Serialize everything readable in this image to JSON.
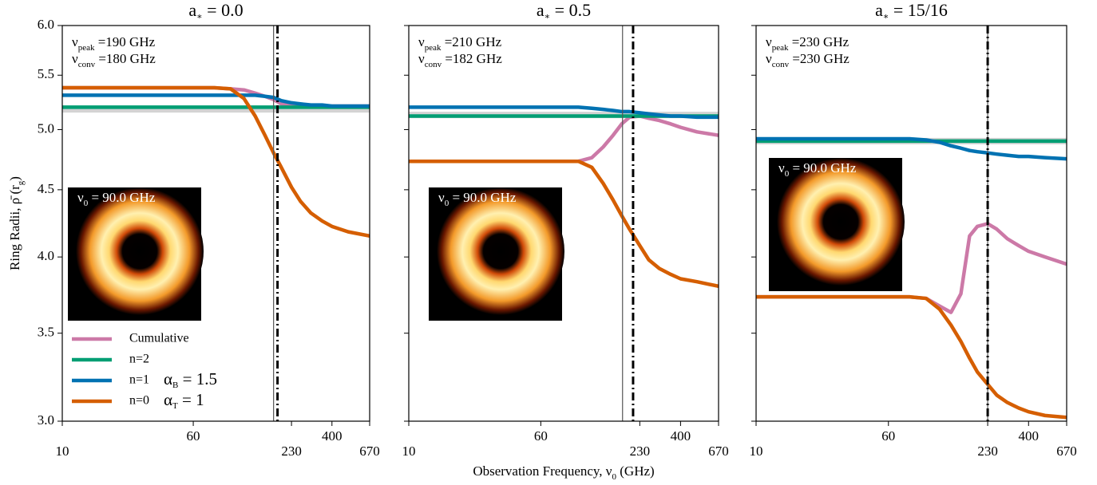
{
  "chart_data": [
    {
      "type": "line",
      "title": [
        "a",
        "∗",
        " = 0.0"
      ],
      "ylabel": [
        "Ring Radii, ρ̄ (r",
        "g",
        ")"
      ],
      "annotations": [
        [
          "ν",
          "peak",
          " =190 GHz"
        ],
        [
          "ν",
          "conv",
          " =180 GHz"
        ]
      ],
      "nu_peak": 190,
      "nu_conv": 180,
      "inset_label": [
        "ν",
        "0",
        " = 90.0 GHz"
      ],
      "notes": [
        [
          "α",
          "B",
          " = 1.5"
        ],
        [
          "α",
          "T",
          " = 1"
        ]
      ],
      "legend": "lower left",
      "xscale": "log",
      "yscale": "log",
      "xlim": [
        10,
        670
      ],
      "xticks": [
        10,
        60,
        230,
        400,
        670
      ],
      "ylim": [
        3,
        6
      ],
      "yticks": [
        {
          "value": 3,
          "label": "3.0"
        },
        {
          "value": 3.5,
          "label": "3.5"
        },
        {
          "value": 4,
          "label": "4.0"
        },
        {
          "value": 4.5,
          "label": "4.5"
        },
        {
          "value": 5,
          "label": "5.0"
        },
        {
          "value": 5.5,
          "label": "5.5"
        },
        {
          "value": 6,
          "label": "6.0"
        }
      ],
      "x": [
        10,
        20,
        40,
        60,
        80,
        100,
        120,
        140,
        160,
        180,
        200,
        230,
        260,
        300,
        350,
        400,
        500,
        670
      ],
      "series": [
        {
          "color": "#c8c8c8",
          "values": [
            5.18,
            5.18,
            5.18,
            5.18,
            5.18,
            5.18,
            5.18,
            5.18,
            5.18,
            5.18,
            5.18,
            5.18,
            5.18,
            5.18,
            5.18,
            5.18,
            5.18,
            5.18
          ]
        },
        {
          "name": "Cumulative",
          "color": "#cc79a7",
          "values": [
            5.38,
            5.38,
            5.38,
            5.38,
            5.38,
            5.37,
            5.36,
            5.33,
            5.3,
            5.27,
            5.23,
            5.21,
            5.21,
            5.21,
            5.21,
            5.21,
            5.21,
            5.21
          ]
        },
        {
          "name": "n=2",
          "color": "#009e73",
          "values": [
            5.2,
            5.2,
            5.2,
            5.2,
            5.2,
            5.2,
            5.2,
            5.2,
            5.2,
            5.2,
            5.2,
            5.2,
            5.2,
            5.2,
            5.2,
            5.2,
            5.2,
            5.2
          ]
        },
        {
          "name": "n=1",
          "color": "#0072b2",
          "values": [
            5.31,
            5.31,
            5.31,
            5.31,
            5.31,
            5.31,
            5.31,
            5.31,
            5.3,
            5.29,
            5.26,
            5.24,
            5.23,
            5.22,
            5.22,
            5.21,
            5.21,
            5.21
          ]
        },
        {
          "name": "n=0",
          "color": "#d55e00",
          "values": [
            5.38,
            5.38,
            5.38,
            5.38,
            5.38,
            5.37,
            5.28,
            5.12,
            4.95,
            4.8,
            4.68,
            4.52,
            4.41,
            4.32,
            4.26,
            4.22,
            4.18,
            4.15
          ]
        }
      ]
    },
    {
      "type": "line",
      "title": [
        "a",
        "∗",
        " = 0.5"
      ],
      "xlabel": [
        "Observation Frequency, ν",
        "0",
        " (GHz)"
      ],
      "annotations": [
        [
          "ν",
          "peak",
          " =210 GHz"
        ],
        [
          "ν",
          "conv",
          " =182 GHz"
        ]
      ],
      "nu_peak": 210,
      "nu_conv": 182,
      "inset_label": [
        "ν",
        "0",
        " = 90.0 GHz"
      ],
      "xscale": "log",
      "yscale": "log",
      "xlim": [
        10,
        670
      ],
      "xticks": [
        10,
        60,
        230,
        400,
        670
      ],
      "ylim": [
        3,
        6
      ],
      "yticks": [
        3,
        3.5,
        4,
        4.5,
        5,
        5.5,
        6
      ],
      "ytick_labels": false,
      "x": [
        10,
        20,
        40,
        60,
        80,
        100,
        120,
        140,
        160,
        180,
        200,
        230,
        260,
        300,
        350,
        400,
        500,
        670
      ],
      "series": [
        {
          "color": "#c8c8c8",
          "values": [
            5.13,
            5.13,
            5.13,
            5.13,
            5.13,
            5.13,
            5.13,
            5.13,
            5.13,
            5.13,
            5.13,
            5.13,
            5.13,
            5.13,
            5.13,
            5.13,
            5.13,
            5.13
          ]
        },
        {
          "name": "Cumulative",
          "color": "#cc79a7",
          "values": [
            4.73,
            4.73,
            4.73,
            4.73,
            4.73,
            4.73,
            4.76,
            4.85,
            4.95,
            5.05,
            5.11,
            5.12,
            5.1,
            5.08,
            5.05,
            5.02,
            4.98,
            4.95
          ]
        },
        {
          "name": "n=2",
          "color": "#009e73",
          "values": [
            5.12,
            5.12,
            5.12,
            5.12,
            5.12,
            5.12,
            5.12,
            5.12,
            5.12,
            5.12,
            5.12,
            5.12,
            5.12,
            5.12,
            5.12,
            5.12,
            5.12,
            5.12
          ]
        },
        {
          "name": "n=1",
          "color": "#0072b2",
          "values": [
            5.2,
            5.2,
            5.2,
            5.2,
            5.2,
            5.2,
            5.19,
            5.18,
            5.17,
            5.16,
            5.16,
            5.15,
            5.14,
            5.13,
            5.12,
            5.12,
            5.11,
            5.11
          ]
        },
        {
          "name": "n=0",
          "color": "#d55e00",
          "values": [
            4.73,
            4.73,
            4.73,
            4.73,
            4.73,
            4.73,
            4.68,
            4.55,
            4.42,
            4.3,
            4.2,
            4.08,
            3.98,
            3.92,
            3.88,
            3.85,
            3.83,
            3.8
          ]
        }
      ]
    },
    {
      "type": "line",
      "title": [
        "a",
        "∗",
        " = 15/16"
      ],
      "annotations": [
        [
          "ν",
          "peak",
          " =230 GHz"
        ],
        [
          "ν",
          "conv",
          " =230 GHz"
        ]
      ],
      "nu_peak": 230,
      "nu_conv": 230,
      "inset_label": [
        "ν",
        "0",
        " = 90.0 GHz"
      ],
      "xscale": "log",
      "yscale": "log",
      "xlim": [
        10,
        670
      ],
      "xticks": [
        10,
        60,
        230,
        400,
        670
      ],
      "ylim": [
        3,
        6
      ],
      "yticks": [
        3,
        3.5,
        4,
        4.5,
        5,
        5.5,
        6
      ],
      "ytick_labels": false,
      "x": [
        10,
        20,
        40,
        60,
        80,
        100,
        120,
        140,
        160,
        180,
        200,
        230,
        260,
        300,
        350,
        400,
        500,
        670
      ],
      "series": [
        {
          "color": "#c8c8c8",
          "values": [
            4.9,
            4.9,
            4.9,
            4.9,
            4.9,
            4.9,
            4.9,
            4.9,
            4.9,
            4.9,
            4.9,
            4.9,
            4.9,
            4.9,
            4.9,
            4.9,
            4.9,
            4.9
          ]
        },
        {
          "name": "Cumulative",
          "color": "#cc79a7",
          "values": [
            3.73,
            3.73,
            3.73,
            3.73,
            3.73,
            3.72,
            3.67,
            3.63,
            3.75,
            4.15,
            4.22,
            4.24,
            4.2,
            4.13,
            4.08,
            4.04,
            4.0,
            3.95
          ]
        },
        {
          "name": "n=2",
          "color": "#009e73",
          "values": [
            4.9,
            4.9,
            4.9,
            4.9,
            4.9,
            4.9,
            4.9,
            4.9,
            4.9,
            4.9,
            4.9,
            4.9,
            4.9,
            4.9,
            4.9,
            4.9,
            4.9,
            4.9
          ]
        },
        {
          "name": "n=1",
          "color": "#0072b2",
          "values": [
            4.92,
            4.92,
            4.92,
            4.92,
            4.92,
            4.91,
            4.89,
            4.86,
            4.84,
            4.82,
            4.81,
            4.8,
            4.79,
            4.78,
            4.77,
            4.77,
            4.76,
            4.75
          ]
        },
        {
          "name": "n=0",
          "color": "#d55e00",
          "values": [
            3.73,
            3.73,
            3.73,
            3.73,
            3.73,
            3.72,
            3.65,
            3.55,
            3.45,
            3.35,
            3.27,
            3.2,
            3.14,
            3.1,
            3.07,
            3.05,
            3.03,
            3.02
          ]
        }
      ]
    }
  ]
}
